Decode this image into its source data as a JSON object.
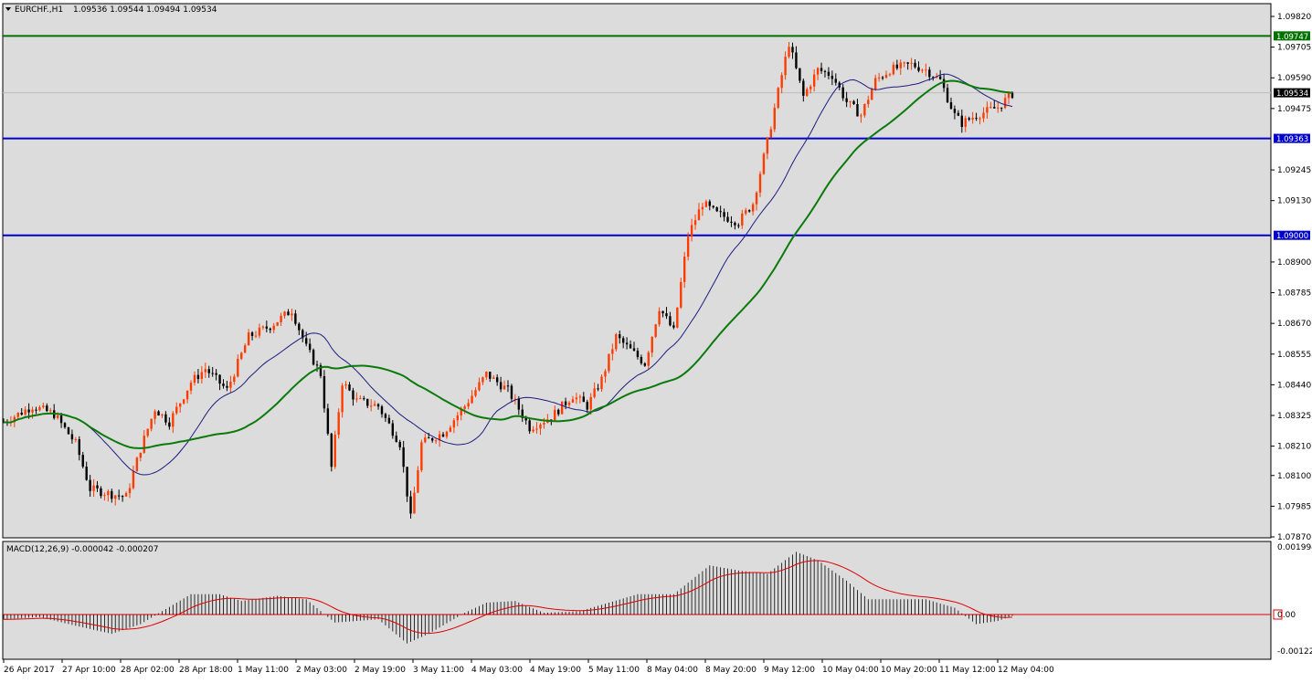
{
  "header": {
    "symbol": "EURCHF.,H1",
    "ohlc": "1.09536 1.09544 1.09494 1.09534"
  },
  "colors": {
    "background": "#dcdcdc",
    "bull_candle": "#ff3c00",
    "bear_candle": "#000000",
    "resistance": "#007000",
    "support": "#0000cc",
    "ma_fast": "#1c1c80",
    "ma_slow": "#0a7a0a",
    "macd_signal": "#e00000",
    "current_price_label": "#000000"
  },
  "chart_data": [
    {
      "type": "candlestick",
      "name_label": "EURCHF.,H1",
      "ylim": [
        1.0787,
        1.0982
      ],
      "y_ticks": [
        "1.09820",
        "1.09705",
        "1.09590",
        "1.09475",
        "1.09245",
        "1.09130",
        "1.08900",
        "1.08785",
        "1.08670",
        "1.08555",
        "1.08440",
        "1.08325",
        "1.08210",
        "1.08100",
        "1.07985",
        "1.07870"
      ],
      "x_ticks": [
        "26 Apr 2017",
        "27 Apr 10:00",
        "28 Apr 02:00",
        "28 Apr 18:00",
        "1 May 11:00",
        "2 May 03:00",
        "2 May 19:00",
        "3 May 11:00",
        "4 May 03:00",
        "4 May 19:00",
        "5 May 11:00",
        "8 May 04:00",
        "8 May 20:00",
        "9 May 12:00",
        "10 May 04:00",
        "10 May 20:00",
        "11 May 12:00",
        "12 May 04:00"
      ],
      "close_path": [
        [
          0,
          1.083
        ],
        [
          8,
          1.0836
        ],
        [
          14,
          1.0833
        ],
        [
          20,
          1.0822
        ],
        [
          24,
          1.0805
        ],
        [
          30,
          1.0803
        ],
        [
          34,
          1.0802
        ],
        [
          38,
          1.082
        ],
        [
          42,
          1.0835
        ],
        [
          46,
          1.083
        ],
        [
          52,
          1.0845
        ],
        [
          56,
          1.085
        ],
        [
          62,
          1.0842
        ],
        [
          68,
          1.0862
        ],
        [
          74,
          1.0866
        ],
        [
          80,
          1.0872
        ],
        [
          84,
          1.0858
        ],
        [
          88,
          1.0848
        ],
        [
          91,
          1.0813
        ],
        [
          94,
          1.0845
        ],
        [
          98,
          1.0838
        ],
        [
          104,
          1.0836
        ],
        [
          110,
          1.0822
        ],
        [
          113,
          1.0794
        ],
        [
          116,
          1.0822
        ],
        [
          122,
          1.0826
        ],
        [
          128,
          1.0836
        ],
        [
          134,
          1.0848
        ],
        [
          140,
          1.0842
        ],
        [
          146,
          1.0828
        ],
        [
          152,
          1.0832
        ],
        [
          158,
          1.084
        ],
        [
          162,
          1.0836
        ],
        [
          166,
          1.0846
        ],
        [
          170,
          1.0862
        ],
        [
          174,
          1.0857
        ],
        [
          178,
          1.0852
        ],
        [
          182,
          1.0873
        ],
        [
          186,
          1.0864
        ],
        [
          190,
          1.09
        ],
        [
          194,
          1.0912
        ],
        [
          198,
          1.0908
        ],
        [
          204,
          1.0905
        ],
        [
          208,
          1.0912
        ],
        [
          212,
          1.0935
        ],
        [
          216,
          1.096
        ],
        [
          218,
          1.0972
        ],
        [
          222,
          1.0952
        ],
        [
          226,
          1.0962
        ],
        [
          230,
          1.096
        ],
        [
          234,
          1.095
        ],
        [
          238,
          1.0945
        ],
        [
          242,
          1.0958
        ],
        [
          246,
          1.0962
        ],
        [
          252,
          1.0964
        ],
        [
          256,
          1.0962
        ],
        [
          260,
          1.0958
        ],
        [
          264,
          1.0945
        ],
        [
          266,
          1.0942
        ],
        [
          270,
          1.0945
        ],
        [
          276,
          1.0948
        ],
        [
          280,
          1.0953
        ]
      ],
      "horizontal_levels": [
        {
          "label": "1.09747",
          "value": 1.09747,
          "role": "resistance"
        },
        {
          "label": "1.09363",
          "value": 1.09363,
          "role": "support"
        },
        {
          "label": "1.09000",
          "value": 1.09,
          "role": "support"
        }
      ],
      "current_price": {
        "label": "1.09534",
        "value": 1.09534
      },
      "indicators": [
        "moving average (fast)",
        "moving average (slow)"
      ]
    },
    {
      "type": "histogram+line",
      "title": "MACD(12,26,9) -0.000042 -0.000207",
      "ylim": [
        -0.001222,
        0.001994
      ],
      "y_ticks": [
        "0.001994",
        "0.00",
        "-0.001222"
      ],
      "zero_label": "0.00",
      "shape_path": [
        [
          0,
          -0.00015
        ],
        [
          10,
          -8e-05
        ],
        [
          20,
          -0.00035
        ],
        [
          30,
          -0.0006
        ],
        [
          38,
          -0.0003
        ],
        [
          44,
          0.0001
        ],
        [
          52,
          0.0006
        ],
        [
          60,
          0.0006
        ],
        [
          66,
          0.0004
        ],
        [
          76,
          0.00055
        ],
        [
          84,
          0.00045
        ],
        [
          92,
          -0.00025
        ],
        [
          104,
          -0.00015
        ],
        [
          112,
          -0.0009
        ],
        [
          118,
          -0.0006
        ],
        [
          128,
          5e-05
        ],
        [
          134,
          0.00035
        ],
        [
          142,
          0.0004
        ],
        [
          150,
          5e-05
        ],
        [
          160,
          0.0001
        ],
        [
          168,
          0.00035
        ],
        [
          176,
          0.0006
        ],
        [
          186,
          0.0006
        ],
        [
          196,
          0.00145
        ],
        [
          204,
          0.0013
        ],
        [
          212,
          0.0012
        ],
        [
          220,
          0.00185
        ],
        [
          226,
          0.0016
        ],
        [
          234,
          0.001
        ],
        [
          240,
          0.00045
        ],
        [
          256,
          0.00045
        ],
        [
          264,
          0.0002
        ],
        [
          270,
          -0.0003
        ],
        [
          276,
          -0.0002
        ],
        [
          280,
          -4e-05
        ]
      ]
    }
  ]
}
